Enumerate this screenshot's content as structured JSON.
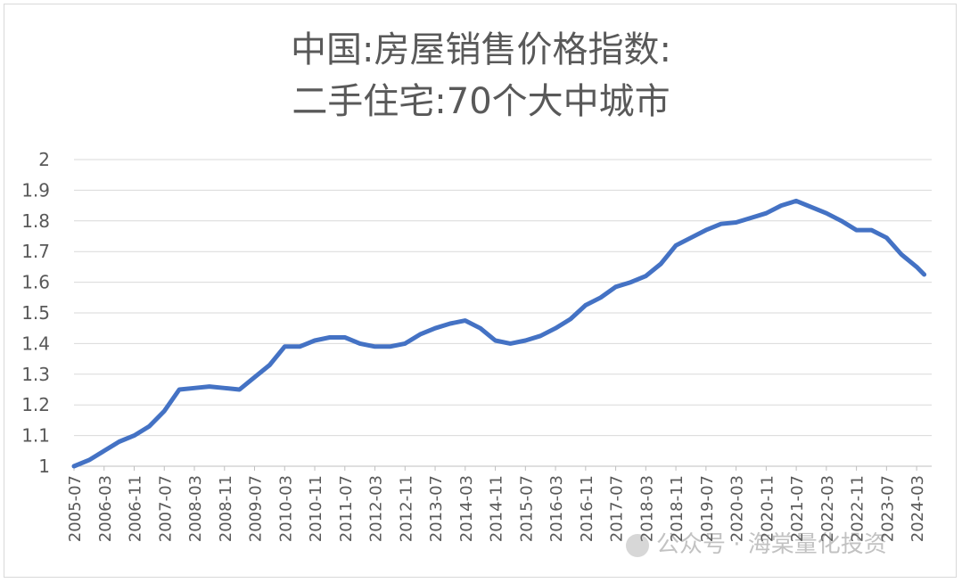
{
  "chart_data": {
    "type": "line",
    "title_line1": "中国:房屋销售价格指数:",
    "title_line2": "二手住宅:70个大中城市",
    "xlabel": "",
    "ylabel": "",
    "ylim": [
      1,
      2
    ],
    "yticks": [
      "1",
      "1.1",
      "1.2",
      "1.3",
      "1.4",
      "1.5",
      "1.6",
      "1.7",
      "1.8",
      "1.9",
      "2"
    ],
    "xticks": [
      "2005-07",
      "2006-03",
      "2006-11",
      "2007-07",
      "2008-03",
      "2008-11",
      "2009-07",
      "2010-03",
      "2010-11",
      "2011-07",
      "2012-03",
      "2012-11",
      "2013-07",
      "2014-03",
      "2014-11",
      "2015-07",
      "2016-03",
      "2016-11",
      "2017-07",
      "2018-03",
      "2018-11",
      "2019-07",
      "2020-03",
      "2020-11",
      "2021-07",
      "2022-03",
      "2022-11",
      "2023-07",
      "2024-03"
    ],
    "grid": true,
    "legend": "none",
    "series_color": "#4472c4",
    "series": [
      {
        "points": [
          [
            "2005-07",
            1.0
          ],
          [
            "2005-11",
            1.02
          ],
          [
            "2006-03",
            1.05
          ],
          [
            "2006-07",
            1.08
          ],
          [
            "2006-11",
            1.1
          ],
          [
            "2007-03",
            1.13
          ],
          [
            "2007-07",
            1.18
          ],
          [
            "2007-11",
            1.25
          ],
          [
            "2008-03",
            1.255
          ],
          [
            "2008-07",
            1.26
          ],
          [
            "2008-11",
            1.255
          ],
          [
            "2009-03",
            1.25
          ],
          [
            "2009-07",
            1.29
          ],
          [
            "2009-11",
            1.33
          ],
          [
            "2010-03",
            1.39
          ],
          [
            "2010-07",
            1.39
          ],
          [
            "2010-11",
            1.41
          ],
          [
            "2011-03",
            1.42
          ],
          [
            "2011-07",
            1.42
          ],
          [
            "2011-11",
            1.4
          ],
          [
            "2012-03",
            1.39
          ],
          [
            "2012-07",
            1.39
          ],
          [
            "2012-11",
            1.4
          ],
          [
            "2013-03",
            1.43
          ],
          [
            "2013-07",
            1.45
          ],
          [
            "2013-11",
            1.465
          ],
          [
            "2014-03",
            1.475
          ],
          [
            "2014-07",
            1.45
          ],
          [
            "2014-11",
            1.41
          ],
          [
            "2015-03",
            1.4
          ],
          [
            "2015-07",
            1.41
          ],
          [
            "2015-11",
            1.425
          ],
          [
            "2016-03",
            1.45
          ],
          [
            "2016-07",
            1.48
          ],
          [
            "2016-11",
            1.525
          ],
          [
            "2017-03",
            1.55
          ],
          [
            "2017-07",
            1.585
          ],
          [
            "2017-11",
            1.6
          ],
          [
            "2018-03",
            1.62
          ],
          [
            "2018-07",
            1.66
          ],
          [
            "2018-11",
            1.72
          ],
          [
            "2019-03",
            1.745
          ],
          [
            "2019-07",
            1.77
          ],
          [
            "2019-11",
            1.79
          ],
          [
            "2020-03",
            1.795
          ],
          [
            "2020-07",
            1.81
          ],
          [
            "2020-11",
            1.825
          ],
          [
            "2021-03",
            1.85
          ],
          [
            "2021-07",
            1.865
          ],
          [
            "2021-11",
            1.845
          ],
          [
            "2022-03",
            1.825
          ],
          [
            "2022-07",
            1.8
          ],
          [
            "2022-11",
            1.77
          ],
          [
            "2023-03",
            1.77
          ],
          [
            "2023-07",
            1.745
          ],
          [
            "2023-11",
            1.69
          ],
          [
            "2024-03",
            1.65
          ],
          [
            "2024-05",
            1.625
          ]
        ]
      }
    ]
  },
  "watermark": "公众号 · 海棠量化投资"
}
